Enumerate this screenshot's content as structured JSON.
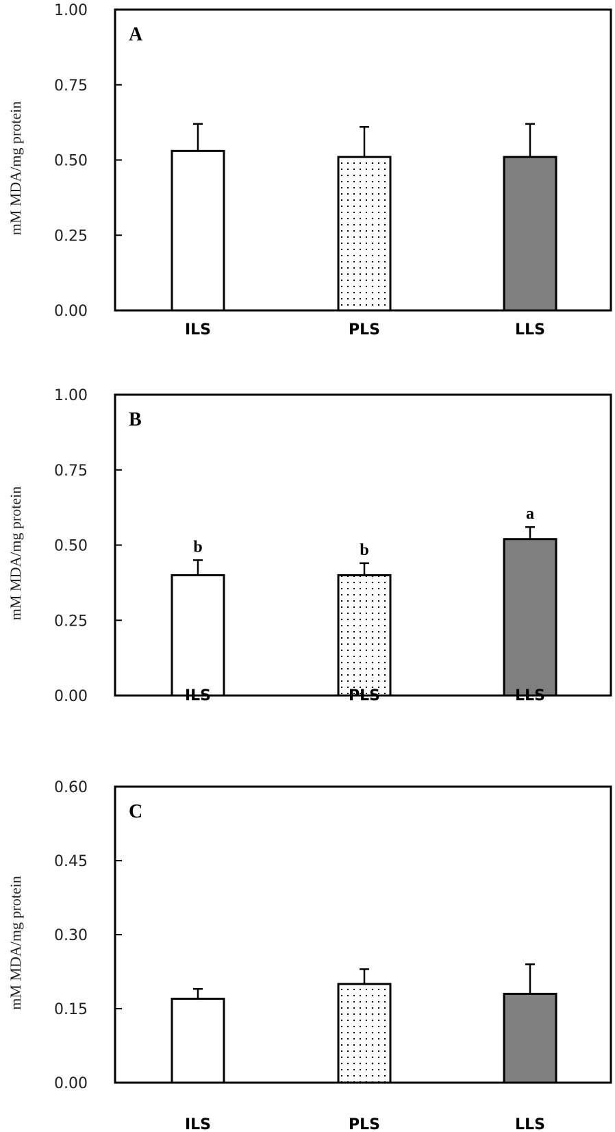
{
  "chart_data": [
    {
      "type": "bar",
      "panel_label": "A",
      "categories": [
        "ILS",
        "PLS",
        "LLS"
      ],
      "values": [
        0.53,
        0.51,
        0.51
      ],
      "errors": [
        0.09,
        0.1,
        0.11
      ],
      "significance": [
        "",
        "",
        ""
      ],
      "ylabel": "mM MDA/mg protein",
      "xlabel": "",
      "ylim": [
        0,
        1.0
      ],
      "yticks": [
        "0.00",
        "0.25",
        "0.50",
        "0.75",
        "1.00"
      ],
      "ytick_values": [
        0,
        0.25,
        0.5,
        0.75,
        1.0
      ],
      "fills": [
        "white",
        "dotted",
        "#808080"
      ],
      "grid": false
    },
    {
      "type": "bar",
      "panel_label": "B",
      "categories": [
        "ILS",
        "PLS",
        "LLS"
      ],
      "values": [
        0.4,
        0.4,
        0.52
      ],
      "errors": [
        0.05,
        0.04,
        0.04
      ],
      "significance": [
        "b",
        "b",
        "a"
      ],
      "ylabel": "mM MDA/mg protein",
      "xlabel": "",
      "ylim": [
        0,
        1.0
      ],
      "yticks": [
        "0.00",
        "0.25",
        "0.50",
        "0.75",
        "1.00"
      ],
      "ytick_values": [
        0,
        0.25,
        0.5,
        0.75,
        1.0
      ],
      "fills": [
        "white",
        "dotted",
        "#808080"
      ],
      "grid": false
    },
    {
      "type": "bar",
      "panel_label": "C",
      "categories": [
        "ILS",
        "PLS",
        "LLS"
      ],
      "values": [
        0.17,
        0.2,
        0.18
      ],
      "errors": [
        0.02,
        0.03,
        0.06
      ],
      "significance": [
        "",
        "",
        ""
      ],
      "ylabel": "mM MDA/mg protein",
      "xlabel": "",
      "ylim": [
        0,
        0.6
      ],
      "yticks": [
        "0.00",
        "0.15",
        "0.30",
        "0.45",
        "0.60"
      ],
      "ytick_values": [
        0,
        0.15,
        0.3,
        0.45,
        0.6
      ],
      "fills": [
        "white",
        "dotted",
        "#808080"
      ],
      "grid": false
    }
  ]
}
